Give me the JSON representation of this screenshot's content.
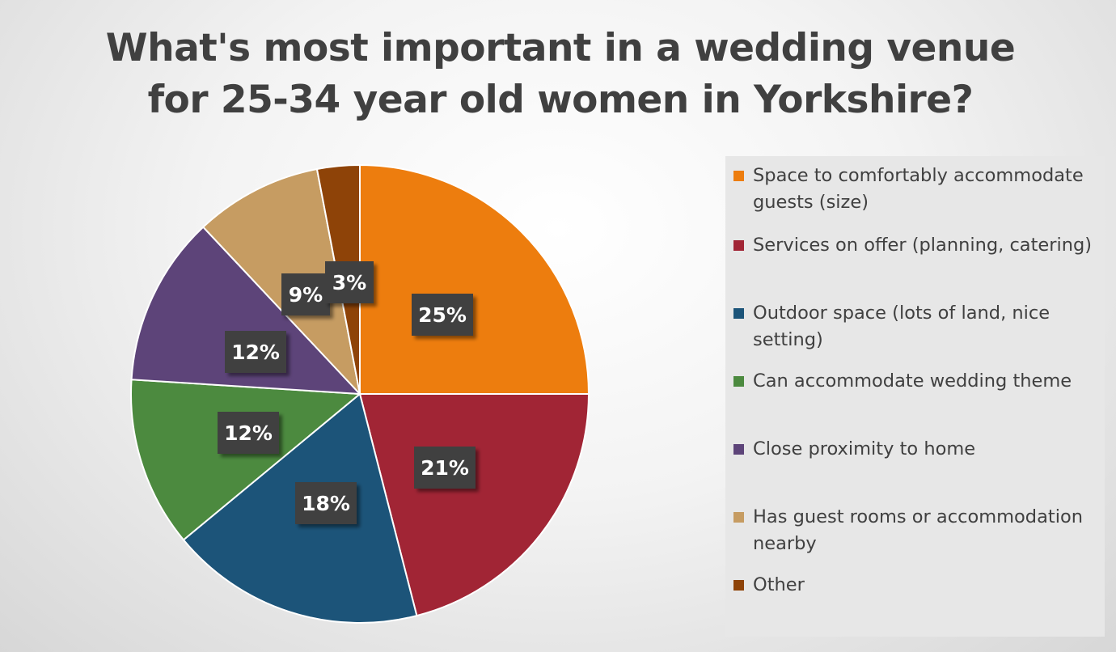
{
  "chart_data": {
    "type": "pie",
    "title_lines": [
      "What's most important in a wedding venue",
      "for 25-34 year old women in Yorkshire?"
    ],
    "slices": [
      {
        "label": "Space to comfortably accommodate guests (size)",
        "value": 25,
        "display": "25%",
        "color": "#ED7D0E"
      },
      {
        "label": "Services on offer (planning, catering)",
        "value": 21,
        "display": "21%",
        "color": "#A12535"
      },
      {
        "label": "Outdoor space (lots of land, nice setting)",
        "value": 18,
        "display": "18%",
        "color": "#1C5479"
      },
      {
        "label": "Can accommodate wedding theme",
        "value": 12,
        "display": "12%",
        "color": "#4C8A3F"
      },
      {
        "label": "Close proximity to home",
        "value": 12,
        "display": "12%",
        "color": "#5D4479"
      },
      {
        "label": "Has guest rooms or accommodation nearby",
        "value": 9,
        "display": "9%",
        "color": "#C69C62"
      },
      {
        "label": "Other",
        "value": 3,
        "display": "3%",
        "color": "#8E4308"
      }
    ],
    "legend_position": "right",
    "start_angle": "12 o'clock",
    "direction": "clockwise"
  }
}
